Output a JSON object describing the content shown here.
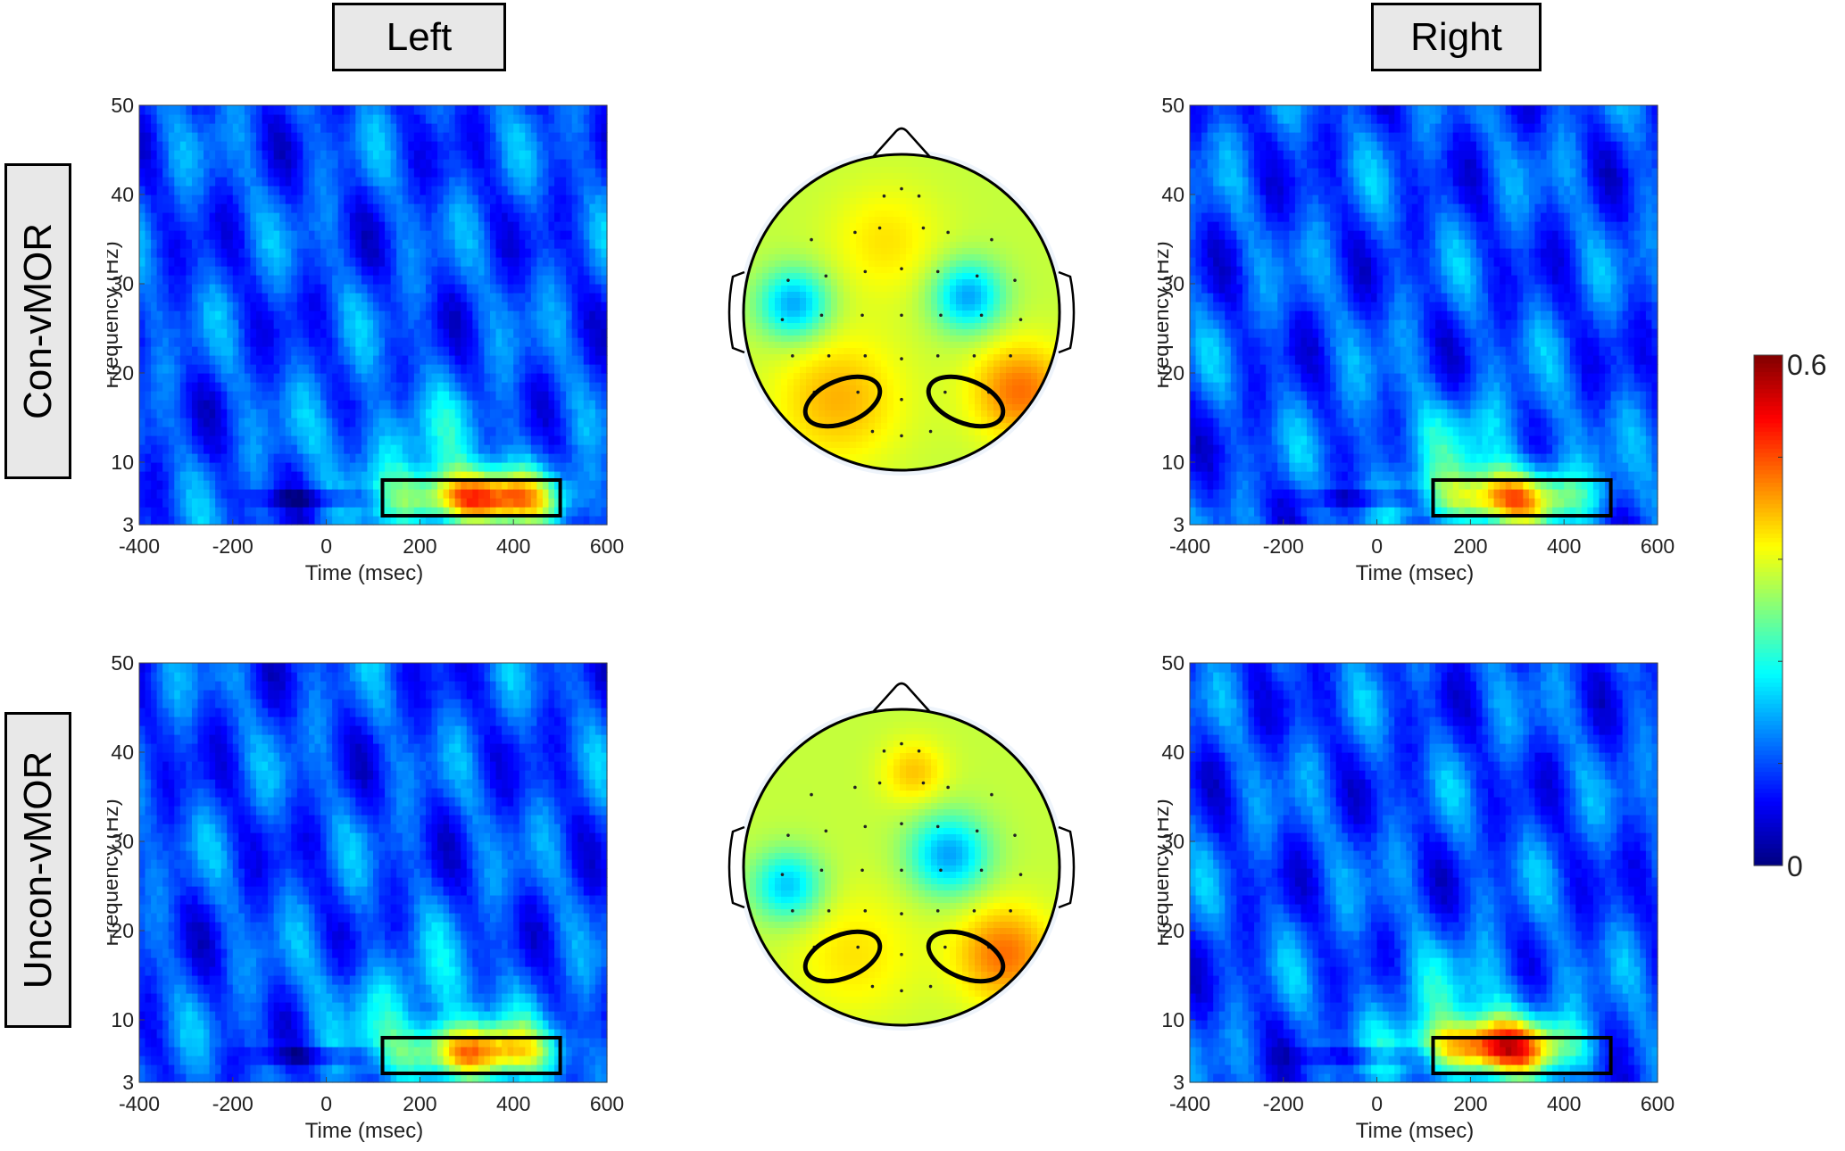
{
  "columns": {
    "left": "Left",
    "right": "Right"
  },
  "rows": {
    "top": "Con-vMOR",
    "bottom": "Uncon-vMOR"
  },
  "colorbar": {
    "min_label": "0",
    "max_label": "0.6",
    "colormap": "jet"
  },
  "chart_data": [
    {
      "type": "heatmap",
      "group": "Con-vMOR",
      "side": "Left",
      "xlabel": "Time (msec)",
      "ylabel": "Frequency (Hz)",
      "xlim": [
        -400,
        600
      ],
      "ylim": [
        3,
        50
      ],
      "xticks": [
        "-400",
        "-200",
        "0",
        "200",
        "400",
        "600"
      ],
      "yticks": [
        "3",
        "10",
        "20",
        "30",
        "40",
        "50"
      ],
      "clim": [
        0,
        0.6
      ],
      "roi": {
        "time": [
          120,
          500
        ],
        "freq": [
          4,
          8
        ]
      },
      "peak": {
        "time": 330,
        "freq": 6,
        "value": 0.5
      }
    },
    {
      "type": "heatmap",
      "group": "Con-vMOR",
      "side": "Right",
      "xlabel": "Time (msec)",
      "ylabel": "Frequency (Hz)",
      "xlim": [
        -400,
        600
      ],
      "ylim": [
        3,
        50
      ],
      "xticks": [
        "-400",
        "-200",
        "0",
        "200",
        "400",
        "600"
      ],
      "yticks": [
        "3",
        "10",
        "20",
        "30",
        "40",
        "50"
      ],
      "clim": [
        0,
        0.6
      ],
      "roi": {
        "time": [
          120,
          500
        ],
        "freq": [
          4,
          8
        ]
      },
      "peak": {
        "time": 280,
        "freq": 6,
        "value": 0.43
      }
    },
    {
      "type": "heatmap",
      "group": "Uncon-vMOR",
      "side": "Left",
      "xlabel": "Time (msec)",
      "ylabel": "Frequency (Hz)",
      "xlim": [
        -400,
        600
      ],
      "ylim": [
        3,
        50
      ],
      "xticks": [
        "-400",
        "-200",
        "0",
        "200",
        "400",
        "600"
      ],
      "yticks": [
        "3",
        "10",
        "20",
        "30",
        "40",
        "50"
      ],
      "clim": [
        0,
        0.6
      ],
      "roi": {
        "time": [
          120,
          500
        ],
        "freq": [
          4,
          8
        ]
      },
      "peak": {
        "time": 320,
        "freq": 6.5,
        "value": 0.44
      }
    },
    {
      "type": "heatmap",
      "group": "Uncon-vMOR",
      "side": "Right",
      "xlabel": "Time (msec)",
      "ylabel": "Frequency (Hz)",
      "xlim": [
        -400,
        600
      ],
      "ylim": [
        3,
        50
      ],
      "xticks": [
        "-400",
        "-200",
        "0",
        "200",
        "400",
        "600"
      ],
      "yticks": [
        "3",
        "10",
        "20",
        "30",
        "40",
        "50"
      ],
      "clim": [
        0,
        0.6
      ],
      "roi": {
        "time": [
          120,
          500
        ],
        "freq": [
          4,
          8
        ]
      },
      "peak": {
        "time": 250,
        "freq": 7,
        "value": 0.5
      }
    }
  ],
  "topomaps": [
    {
      "group": "Con-vMOR",
      "roi_markers": [
        "left-posterior",
        "right-posterior"
      ]
    },
    {
      "group": "Uncon-vMOR",
      "roi_markers": [
        "left-posterior",
        "right-posterior"
      ]
    }
  ]
}
